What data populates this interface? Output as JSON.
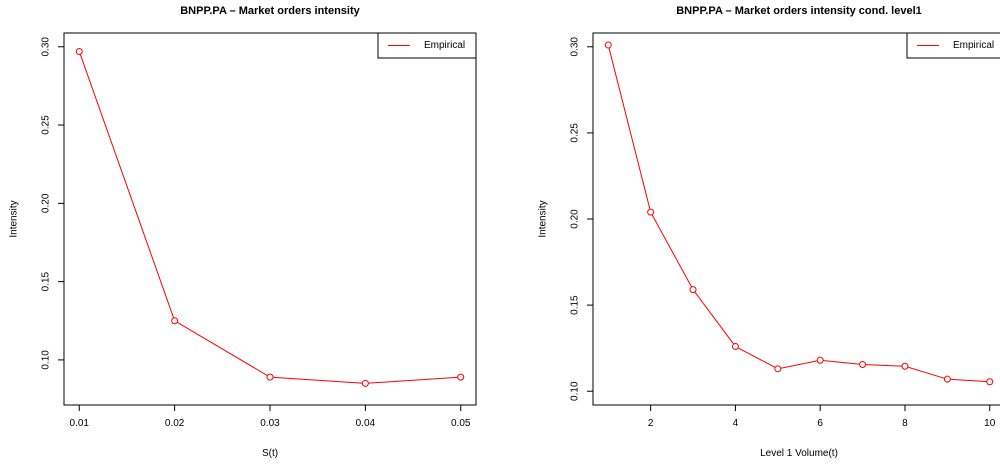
{
  "chart_data": [
    {
      "type": "line",
      "title": "BNPP.PA  – Market orders intensity",
      "xlabel": "S(t)",
      "ylabel": "Intensity",
      "xlim": [
        0.01,
        0.05
      ],
      "ylim": [
        0.08,
        0.3
      ],
      "x_ticks": [
        0.01,
        0.02,
        0.03,
        0.04,
        0.05
      ],
      "x_tick_labels": [
        "0.01",
        "0.02",
        "0.03",
        "0.04",
        "0.05"
      ],
      "y_ticks": [
        0.1,
        0.15,
        0.2,
        0.25,
        0.3
      ],
      "y_tick_labels": [
        "0.10",
        "0.15",
        "0.20",
        "0.25",
        "0.30"
      ],
      "grid": false,
      "legend": {
        "position": "top-right",
        "entries": [
          "Empirical"
        ]
      },
      "series": [
        {
          "name": "Empirical",
          "color": "#ff0000",
          "marker": "open-circle",
          "x": [
            0.01,
            0.02,
            0.03,
            0.04,
            0.05
          ],
          "y": [
            0.297,
            0.125,
            0.089,
            0.085,
            0.089
          ]
        }
      ]
    },
    {
      "type": "line",
      "title": "BNPP.PA  – Market orders intensity cond. level1",
      "xlabel": "Level 1  Volume(t)",
      "ylabel": "Intensity",
      "xlim": [
        1,
        10
      ],
      "ylim": [
        0.1,
        0.3
      ],
      "x_ticks": [
        2,
        4,
        6,
        8,
        10
      ],
      "x_tick_labels": [
        "2",
        "4",
        "6",
        "8",
        "10"
      ],
      "y_ticks": [
        0.1,
        0.15,
        0.2,
        0.25,
        0.3
      ],
      "y_tick_labels": [
        "0.10",
        "0.15",
        "0.20",
        "0.25",
        "0.30"
      ],
      "grid": false,
      "legend": {
        "position": "top-right",
        "entries": [
          "Empirical"
        ]
      },
      "series": [
        {
          "name": "Empirical",
          "color": "#ff0000",
          "marker": "open-circle",
          "x": [
            1,
            2,
            3,
            4,
            5,
            6,
            7,
            8,
            9,
            10
          ],
          "y": [
            0.301,
            0.204,
            0.159,
            0.126,
            0.113,
            0.118,
            0.1155,
            0.1145,
            0.107,
            0.1055
          ]
        }
      ]
    }
  ]
}
